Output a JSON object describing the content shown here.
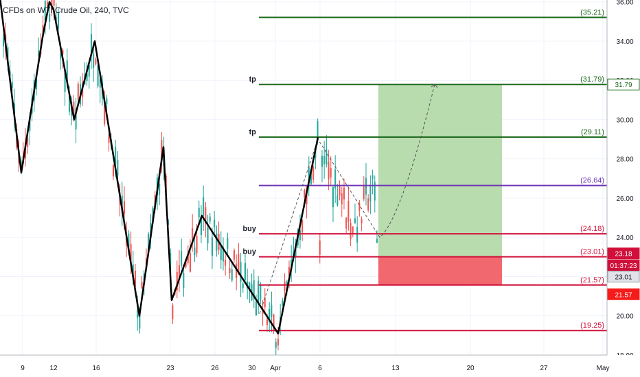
{
  "header": {
    "symbol_title": "CFDs on WTI Crude Oil, 240, TVC"
  },
  "chart_data": {
    "type": "candlestick",
    "x_ticks": [
      "9",
      "12",
      "16",
      "23",
      "26",
      "30",
      "Apr",
      "6",
      "13",
      "20",
      "27",
      "May"
    ],
    "y_ticks": [
      "18.00",
      "20.00",
      "22.00",
      "24.00",
      "26.00",
      "28.00",
      "30.00",
      "32.00",
      "34.00",
      "36.00"
    ],
    "ylim": [
      18,
      36.2
    ],
    "colors": {
      "bull": "#26a69a",
      "bear": "#ef5350",
      "zigzag": "#000000",
      "green_level": "#1e6b1e",
      "red_level": "#d0103a",
      "purple_level": "#6d35b5",
      "target_zone": "#b9dcae",
      "stop_zone": "#f1696f"
    },
    "levels": [
      {
        "price": 35.21,
        "label": "(35.21)",
        "tag": "",
        "color": "green"
      },
      {
        "price": 31.79,
        "label": "(31.79)",
        "tag": "tp",
        "color": "green"
      },
      {
        "price": 29.11,
        "label": "(29.11)",
        "tag": "tp",
        "color": "green"
      },
      {
        "price": 26.64,
        "label": "(26.64)",
        "tag": "",
        "color": "purple"
      },
      {
        "price": 24.18,
        "label": "(24.18)",
        "tag": "buy",
        "color": "red"
      },
      {
        "price": 23.01,
        "label": "(23.01)",
        "tag": "buy",
        "color": "red"
      },
      {
        "price": 21.57,
        "label": "(21.57)",
        "tag": "",
        "color": "red"
      },
      {
        "price": 19.25,
        "label": "(19.25)",
        "tag": "",
        "color": "red"
      }
    ],
    "price_tags": [
      {
        "price": 31.79,
        "text": "31.79",
        "style": "green"
      },
      {
        "price": 23.18,
        "text": "23.18",
        "style": "red"
      },
      {
        "price": 22.57,
        "text": "01:37:23",
        "style": "red"
      },
      {
        "price": 22.0,
        "text": "23.01",
        "style": "gray"
      },
      {
        "price": 21.1,
        "text": "21.57",
        "style": "bright-red"
      }
    ],
    "position": {
      "entry": 23.01,
      "target": 31.79,
      "stop": 21.57
    },
    "zigzag_path": [
      {
        "x": 0,
        "y": 36.2
      },
      {
        "x": 31,
        "y": 27.3
      },
      {
        "x": 62,
        "y": 34.2
      },
      {
        "x": 72,
        "y": 36.0
      },
      {
        "x": 78,
        "y": 35.6
      },
      {
        "x": 108,
        "y": 30.0
      },
      {
        "x": 138,
        "y": 34.0
      },
      {
        "x": 203,
        "y": 20.0
      },
      {
        "x": 238,
        "y": 28.6
      },
      {
        "x": 250,
        "y": 20.8
      },
      {
        "x": 294,
        "y": 25.1
      },
      {
        "x": 405,
        "y": 19.1
      },
      {
        "x": 463,
        "y": 29.1
      }
    ],
    "forecast_path": [
      {
        "x": 378,
        "y": 20.1
      },
      {
        "x": 463,
        "y": 29.0
      },
      {
        "x": 553,
        "y": 24.0
      },
      {
        "x": 575,
        "y": 24.6
      },
      {
        "x": 605,
        "y": 27.8
      },
      {
        "x": 633,
        "y": 31.8
      }
    ],
    "candles": [
      {
        "x": 32,
        "open": 29.0,
        "high": 30.2,
        "low": 28.7,
        "close": 29.7
      }
    ]
  }
}
